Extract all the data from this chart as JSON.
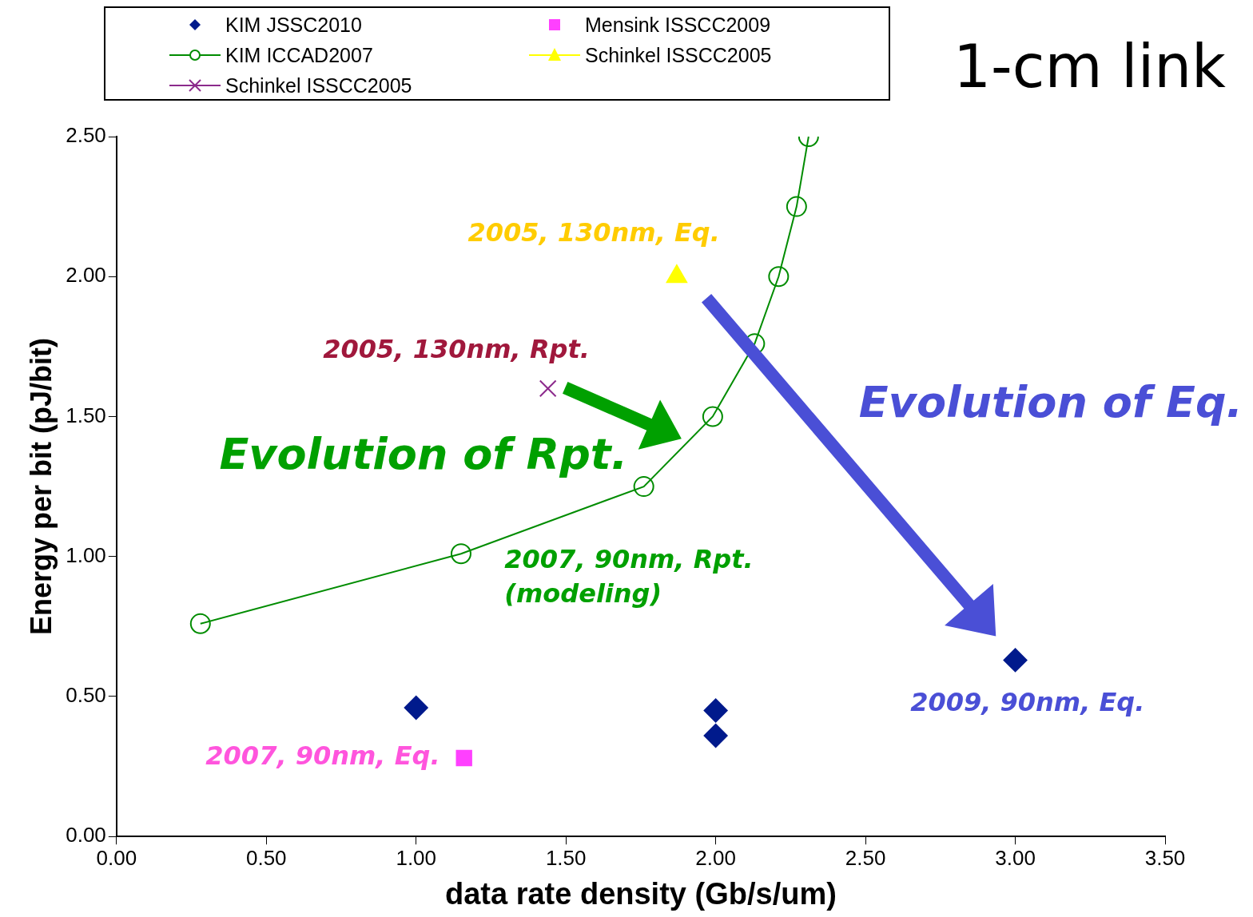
{
  "chart_data": {
    "type": "scatter",
    "title": "1-cm link",
    "xlabel": "data rate density (Gb/s/um)",
    "ylabel": "Energy per bit (pJ/bit)",
    "series": [
      {
        "name": "KIM JSSC2010",
        "type": "scatter",
        "marker": "diamond",
        "color": "#001a8c",
        "x": [
          1.0,
          2.0,
          2.0,
          3.0
        ],
        "values": [
          0.46,
          0.45,
          0.36,
          0.63
        ]
      },
      {
        "name": "Mensink ISSCC2009",
        "type": "scatter",
        "marker": "square",
        "color": "#ff40ff",
        "x": [
          1.16
        ],
        "values": [
          0.28
        ]
      },
      {
        "name": "KIM ICCAD2007",
        "type": "line",
        "marker": "circle",
        "color": "#008c00",
        "x": [
          0.28,
          1.15,
          1.76,
          1.99,
          2.13,
          2.21,
          2.27,
          2.31
        ],
        "values": [
          0.76,
          1.01,
          1.25,
          1.5,
          1.76,
          2.0,
          2.25,
          2.5
        ]
      },
      {
        "name": "Schinkel ISSCC2005",
        "type": "scatter",
        "marker": "triangle",
        "color": "#ffff00",
        "x": [
          1.87
        ],
        "values": [
          2.0
        ]
      },
      {
        "name": "Schinkel ISSCC2005",
        "type": "scatter",
        "marker": "cross",
        "color": "#8c2a8c",
        "x": [
          1.44
        ],
        "values": [
          1.6
        ]
      }
    ],
    "xlim": [
      0,
      3.5
    ],
    "xticks": [
      {
        "value": 0,
        "label": "0.00"
      },
      {
        "value": 0.5,
        "label": "0.50"
      },
      {
        "value": 1,
        "label": "1.00"
      },
      {
        "value": 1.5,
        "label": "1.50"
      },
      {
        "value": 2,
        "label": "2.00"
      },
      {
        "value": 2.5,
        "label": "2.50"
      },
      {
        "value": 3,
        "label": "3.00"
      },
      {
        "value": 3.5,
        "label": "3.50"
      }
    ],
    "ylim": [
      0,
      2.5
    ],
    "yticks": [
      {
        "value": 0,
        "label": "0.00"
      },
      {
        "value": 0.5,
        "label": "0.50"
      },
      {
        "value": 1,
        "label": "1.00"
      },
      {
        "value": 1.5,
        "label": "1.50"
      },
      {
        "value": 2,
        "label": "2.00"
      },
      {
        "value": 2.5,
        "label": "2.50"
      }
    ],
    "grid": false,
    "legend": "top",
    "annotations": [
      "2005, 130nm, Eq.",
      "2005, 130nm, Rpt.",
      "Evolution of Rpt.",
      "2007, 90nm, Rpt.\n(modeling)",
      "2009, 90nm, Eq.",
      "2007, 90nm, Eq.",
      "Evolution of Eq."
    ]
  }
}
